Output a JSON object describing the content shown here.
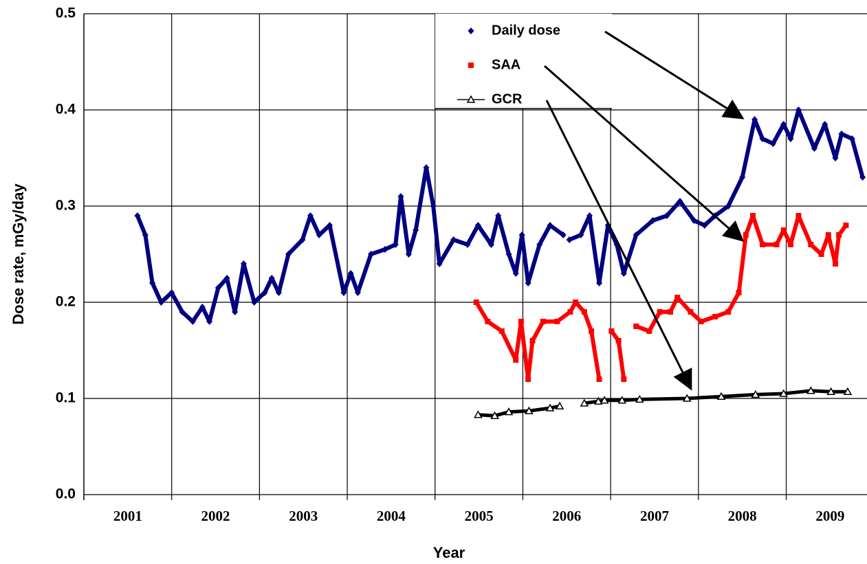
{
  "chart_data": {
    "type": "scatter",
    "xlabel": "Year",
    "ylabel": "Dose rate, mGy/day",
    "xlim": [
      2001,
      2009.92
    ],
    "ylim": [
      0,
      0.5
    ],
    "xticks": [
      {
        "value": 2001.5,
        "label": "2001"
      },
      {
        "value": 2002.5,
        "label": "2002"
      },
      {
        "value": 2003.5,
        "label": "2003"
      },
      {
        "value": 2004.5,
        "label": "2004"
      },
      {
        "value": 2005.5,
        "label": "2005"
      },
      {
        "value": 2006.5,
        "label": "2006"
      },
      {
        "value": 2007.5,
        "label": "2007"
      },
      {
        "value": 2008.5,
        "label": "2008"
      },
      {
        "value": 2009.5,
        "label": "2009"
      }
    ],
    "xgrid": [
      2002,
      2003,
      2004,
      2005,
      2006,
      2007,
      2008,
      2009
    ],
    "yticks": [
      {
        "value": 0,
        "label": "0.0"
      },
      0.1,
      0.2,
      0.3,
      0.4,
      0.5
    ],
    "grid": true,
    "series": [
      {
        "name": "Daily dose",
        "color": "#000080",
        "marker": "diamond",
        "x": [
          2001.61,
          2001.7,
          2001.78,
          2001.88,
          2002.0,
          2002.12,
          2002.24,
          2002.35,
          2002.43,
          2002.53,
          2002.63,
          2002.72,
          2002.82,
          2002.94,
          2003.06,
          2003.14,
          2003.22,
          2003.33,
          2003.49,
          2003.58,
          2003.68,
          2003.8,
          2003.96,
          2004.04,
          2004.12,
          2004.27,
          2004.43,
          2004.55,
          2004.61,
          2004.7,
          2004.78,
          2004.9,
          2004.98,
          2005.05,
          2005.21,
          2005.37,
          2005.49,
          2005.64,
          2005.72,
          2005.84,
          2005.92,
          2005.99,
          2006.06,
          2006.19,
          2006.31,
          2006.46,
          2006.5,
          2006.53,
          2006.66,
          2006.76,
          2006.87,
          2006.97,
          2007.07,
          2007.15,
          2007.29,
          2007.48,
          2007.64,
          2007.79,
          2007.95,
          2008.07,
          2008.19,
          2008.34,
          2008.5,
          2008.64,
          2008.73,
          2008.85,
          2008.97,
          2009.05,
          2009.14,
          2009.32,
          2009.44,
          2009.56,
          2009.63,
          2009.75,
          2009.87
        ],
        "values": [
          0.29,
          0.27,
          0.22,
          0.2,
          0.21,
          0.19,
          0.18,
          0.195,
          0.18,
          0.215,
          0.225,
          0.19,
          0.24,
          0.2,
          0.21,
          0.225,
          0.21,
          0.25,
          0.265,
          0.29,
          0.27,
          0.28,
          0.21,
          0.23,
          0.21,
          0.25,
          0.255,
          0.26,
          0.31,
          0.25,
          0.275,
          0.34,
          0.3,
          0.24,
          0.265,
          0.26,
          0.28,
          0.26,
          0.29,
          0.25,
          0.23,
          0.27,
          0.22,
          0.26,
          0.28,
          0.27,
          null,
          0.265,
          0.27,
          0.29,
          0.22,
          0.28,
          0.26,
          0.23,
          0.27,
          0.285,
          0.29,
          0.305,
          0.285,
          0.28,
          0.29,
          0.3,
          0.33,
          0.39,
          0.37,
          0.365,
          0.385,
          0.37,
          0.4,
          0.36,
          0.385,
          0.35,
          0.375,
          0.37,
          0.33
        ]
      },
      {
        "name": "SAA",
        "color": "#ff0000",
        "marker": "square",
        "x": [
          2005.47,
          2005.6,
          2005.76,
          2005.92,
          2005.98,
          2006.06,
          2006.11,
          2006.23,
          2006.39,
          2006.54,
          2006.6,
          2006.7,
          2006.78,
          2006.87,
          2006.94,
          2007.01,
          2007.09,
          2007.15,
          2007.22,
          2007.29,
          2007.44,
          2007.56,
          2007.68,
          2007.76,
          2007.91,
          2008.03,
          2008.19,
          2008.34,
          2008.46,
          2008.54,
          2008.62,
          2008.73,
          2008.89,
          2008.97,
          2009.05,
          2009.14,
          2009.28,
          2009.4,
          2009.48,
          2009.56,
          2009.6,
          2009.68
        ],
        "values": [
          0.2,
          0.18,
          0.17,
          0.14,
          0.18,
          0.12,
          0.16,
          0.18,
          0.18,
          0.19,
          0.2,
          0.19,
          0.17,
          0.12,
          null,
          0.17,
          0.16,
          0.12,
          null,
          0.175,
          0.17,
          0.19,
          0.19,
          0.205,
          0.19,
          0.18,
          0.185,
          0.19,
          0.21,
          0.27,
          0.29,
          0.26,
          0.26,
          0.275,
          0.26,
          0.29,
          0.26,
          0.25,
          0.27,
          0.24,
          0.27,
          0.28
        ]
      },
      {
        "name": "GCR",
        "color": "#000000",
        "marker": "triangle",
        "x": [
          2005.49,
          2005.68,
          2005.84,
          2006.07,
          2006.31,
          2006.42,
          2006.45,
          2006.7,
          2006.86,
          2006.93,
          2007.13,
          2007.33,
          2007.87,
          2008.26,
          2008.65,
          2008.97,
          2009.28,
          2009.51,
          2009.7
        ],
        "values": [
          0.083,
          0.082,
          0.086,
          0.087,
          0.09,
          0.092,
          null,
          0.095,
          0.097,
          0.098,
          0.098,
          0.099,
          0.1,
          0.102,
          0.104,
          0.105,
          0.108,
          0.107,
          0.107
        ]
      }
    ]
  }
}
